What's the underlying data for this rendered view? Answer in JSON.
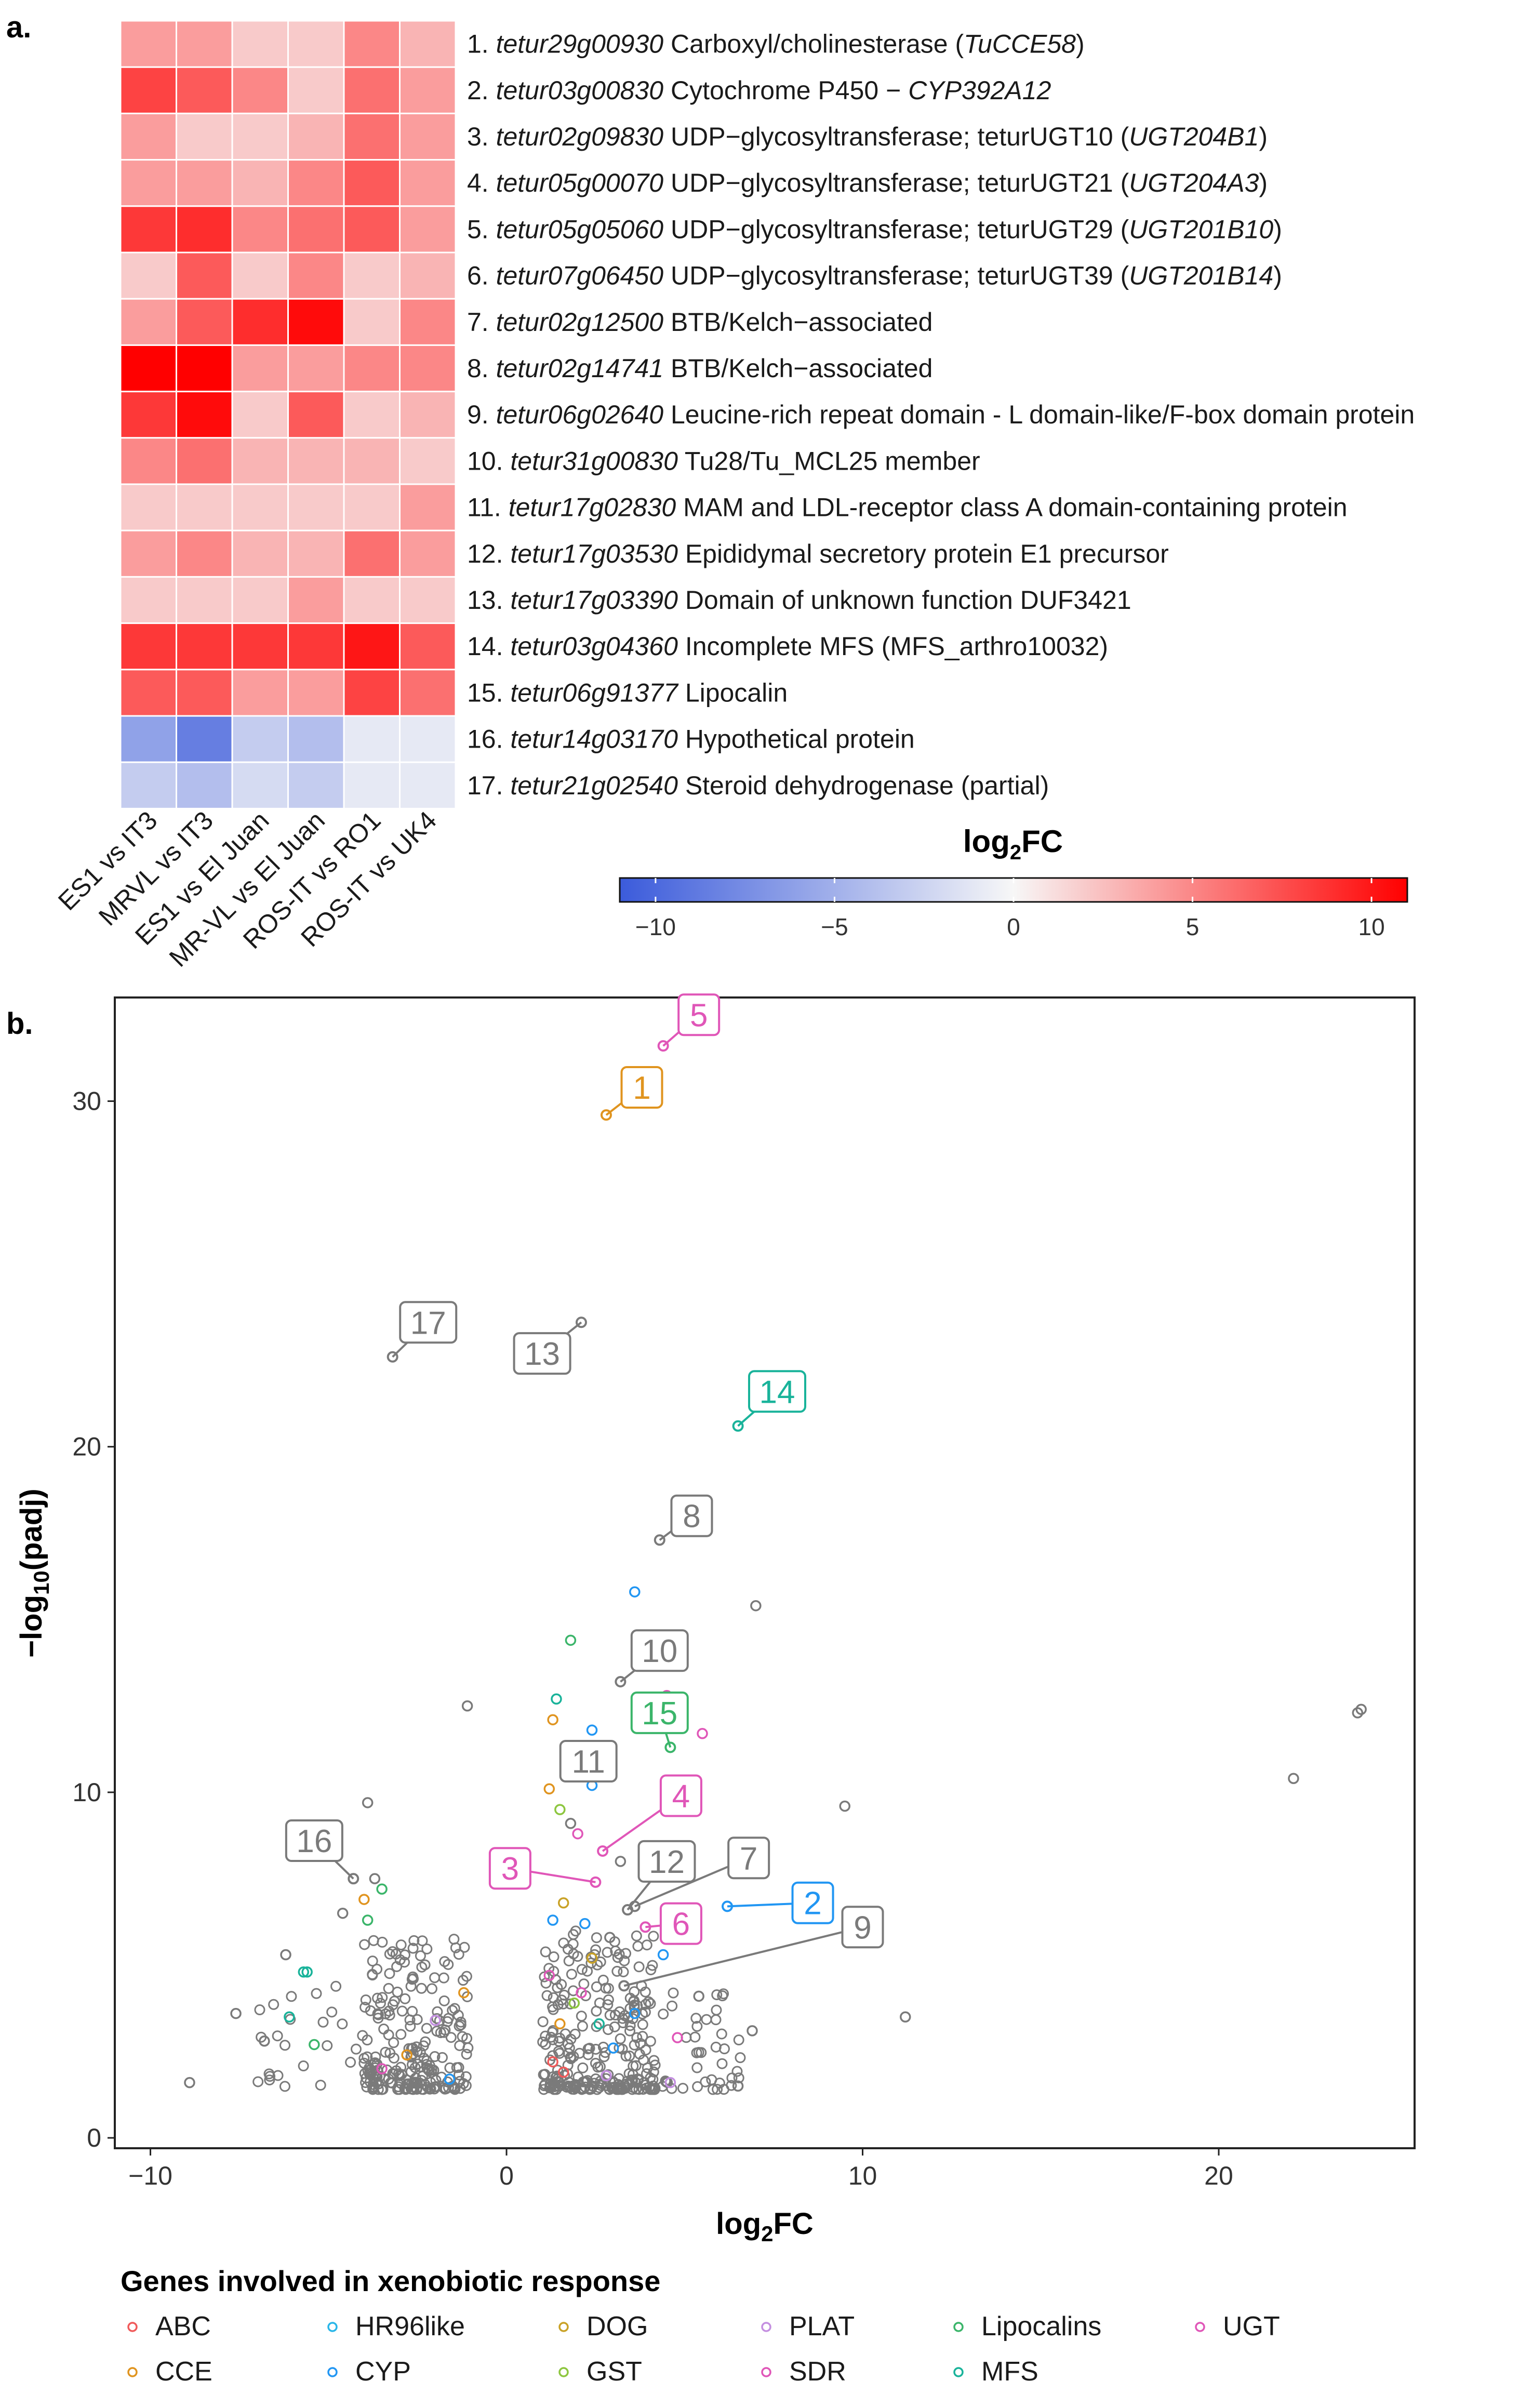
{
  "panel_a_label": "a.",
  "panel_b_label": "b.",
  "colors": {
    "low": "#3b5bdb",
    "mid": "#f7f7f7",
    "high": "#ff0000",
    "background_points": "#7a7a7a"
  },
  "chart_data": [
    {
      "type": "heatmap",
      "columns": [
        "ES1 vs IT3",
        "MRVL vs IT3",
        "ES1 vs El Juan",
        "MR-VL vs El Juan",
        "ROS-IT vs RO1",
        "ROS-IT vs UK4"
      ],
      "rows": [
        {
          "num": "1.",
          "gene": "tetur29g00930",
          "desc": " Carboxyl/cholinesterase (",
          "italic2": "TuCCE58",
          "desc2": ")"
        },
        {
          "num": "2.",
          "gene": "tetur03g00830",
          "desc": " Cytochrome P450 − ",
          "italic2": "CYP392A12",
          "desc2": ""
        },
        {
          "num": "3.",
          "gene": "tetur02g09830",
          "desc": " UDP−glycosyltransferase; teturUGT10 (",
          "italic2": "UGT204B1",
          "desc2": ")"
        },
        {
          "num": "4.",
          "gene": "tetur05g00070",
          "desc": " UDP−glycosyltransferase; teturUGT21 (",
          "italic2": "UGT204A3",
          "desc2": ")"
        },
        {
          "num": "5.",
          "gene": "tetur05g05060",
          "desc": " UDP−glycosyltransferase; teturUGT29 (",
          "italic2": "UGT201B10",
          "desc2": ")"
        },
        {
          "num": "6.",
          "gene": "tetur07g06450",
          "desc": " UDP−glycosyltransferase; teturUGT39 (",
          "italic2": "UGT201B14",
          "desc2": ")"
        },
        {
          "num": "7.",
          "gene": "tetur02g12500",
          "desc": " BTB/Kelch−associated",
          "italic2": "",
          "desc2": ""
        },
        {
          "num": "8.",
          "gene": "tetur02g14741",
          "desc": " BTB/Kelch−associated",
          "italic2": "",
          "desc2": ""
        },
        {
          "num": "9.",
          "gene": "tetur06g02640",
          "desc": " Leucine-rich repeat domain - L domain-like/F-box domain protein",
          "italic2": "",
          "desc2": ""
        },
        {
          "num": "10.",
          "gene": "tetur31g00830",
          "desc": " Tu28/Tu_MCL25 member",
          "italic2": "",
          "desc2": ""
        },
        {
          "num": "11.",
          "gene": "tetur17g02830",
          "desc": " MAM and LDL-receptor class A domain-containing protein",
          "italic2": "",
          "desc2": ""
        },
        {
          "num": "12.",
          "gene": "tetur17g03530",
          "desc": " Epididymal secretory protein E1 precursor",
          "italic2": "",
          "desc2": ""
        },
        {
          "num": "13.",
          "gene": "tetur17g03390",
          "desc": " Domain of unknown function DUF3421",
          "italic2": "",
          "desc2": ""
        },
        {
          "num": "14.",
          "gene": "tetur03g04360",
          "desc": " Incomplete MFS (MFS_arthro10032)",
          "italic2": "",
          "desc2": ""
        },
        {
          "num": "15.",
          "gene": "tetur06g91377",
          "desc": " Lipocalin",
          "italic2": "",
          "desc2": ""
        },
        {
          "num": "16.",
          "gene": "tetur14g03170",
          "desc": " Hypothetical protein",
          "italic2": "",
          "desc2": ""
        },
        {
          "num": "17.",
          "gene": "tetur21g02540",
          "desc": " Steroid dehydrogenase (partial)",
          "italic2": "",
          "desc2": ""
        }
      ],
      "values": [
        [
          4,
          4,
          2,
          2,
          5,
          3
        ],
        [
          8,
          7,
          5,
          2,
          6,
          4
        ],
        [
          4,
          2,
          2,
          3,
          6,
          4
        ],
        [
          4,
          4,
          3,
          5,
          7,
          4
        ],
        [
          8.5,
          9,
          5,
          6,
          7,
          4
        ],
        [
          2,
          7,
          2,
          5,
          2,
          3
        ],
        [
          4,
          7,
          9,
          10.5,
          2,
          5
        ],
        [
          11,
          11,
          4,
          4,
          5,
          5
        ],
        [
          8.5,
          10.5,
          2,
          7,
          2,
          3
        ],
        [
          5,
          6,
          3,
          3,
          3,
          2
        ],
        [
          2,
          2,
          2,
          2,
          2,
          4
        ],
        [
          4,
          5,
          3,
          3,
          6,
          4
        ],
        [
          2,
          2,
          2,
          4,
          2,
          2
        ],
        [
          8.5,
          8.5,
          8.5,
          8.5,
          10,
          7
        ],
        [
          7,
          7,
          4,
          4,
          8,
          6
        ],
        [
          -6,
          -8.5,
          -3,
          -4,
          -1,
          -1
        ],
        [
          -3,
          -4,
          -2,
          -3,
          -1,
          -1
        ]
      ],
      "colorbar": {
        "title": "log",
        "title_sub": "2",
        "title_end": "FC",
        "range": [
          -11,
          11
        ],
        "ticks": [
          -10,
          -5,
          0,
          5,
          10
        ],
        "tick_labels": [
          "−10",
          "−5",
          "0",
          "5",
          "10"
        ]
      }
    },
    {
      "type": "scatter",
      "xlabel": "log",
      "xlabel_sub": "2",
      "xlabel_end": "FC",
      "ylabel": "−log",
      "ylabel_sub": "10",
      "ylabel_end": "(padj)",
      "xlim": [
        -11,
        25.5
      ],
      "ylim": [
        -0.3,
        33
      ],
      "xticks": [
        -10,
        0,
        10,
        20
      ],
      "xtick_labels": [
        "−10",
        "0",
        "10",
        "20"
      ],
      "yticks": [
        0,
        10,
        20,
        30
      ],
      "ytick_labels": [
        "0",
        "10",
        "20",
        "30"
      ],
      "labeled_points": [
        {
          "id": "5",
          "x": 4.4,
          "y": 31.6,
          "color": "#e056b8",
          "lx": 5.4,
          "ly": 32.5
        },
        {
          "id": "1",
          "x": 2.8,
          "y": 29.6,
          "color": "#e0941f",
          "lx": 3.8,
          "ly": 30.4
        },
        {
          "id": "17",
          "x": -3.2,
          "y": 22.6,
          "color": "#7a7a7a",
          "lx": -2.2,
          "ly": 23.6
        },
        {
          "id": "13",
          "x": 2.1,
          "y": 23.6,
          "color": "#7a7a7a",
          "lx": 1.0,
          "ly": 22.7
        },
        {
          "id": "14",
          "x": 6.5,
          "y": 20.6,
          "color": "#19b39a",
          "lx": 7.6,
          "ly": 21.6
        },
        {
          "id": "8",
          "x": 4.3,
          "y": 17.3,
          "color": "#7a7a7a",
          "lx": 5.2,
          "ly": 18.0
        },
        {
          "id": "10",
          "x": 3.2,
          "y": 13.2,
          "color": "#7a7a7a",
          "lx": 4.3,
          "ly": 14.1
        },
        {
          "id": "15",
          "x": 4.6,
          "y": 11.3,
          "color": "#3bb56a",
          "lx": 4.3,
          "ly": 12.3
        },
        {
          "id": "11",
          "x": 1.7,
          "y": 10.8,
          "color": "#7a7a7a",
          "lx": 2.3,
          "ly": 10.9
        },
        {
          "id": "4",
          "x": 2.7,
          "y": 8.3,
          "color": "#e056b8",
          "lx": 4.9,
          "ly": 9.9
        },
        {
          "id": "16",
          "x": -4.3,
          "y": 7.5,
          "color": "#7a7a7a",
          "lx": -5.4,
          "ly": 8.6
        },
        {
          "id": "3",
          "x": 2.5,
          "y": 7.4,
          "color": "#e056b8",
          "lx": 0.1,
          "ly": 7.8
        },
        {
          "id": "12",
          "x": 3.4,
          "y": 6.6,
          "color": "#7a7a7a",
          "lx": 4.5,
          "ly": 8.0
        },
        {
          "id": "7",
          "x": 3.6,
          "y": 6.7,
          "color": "#7a7a7a",
          "lx": 6.8,
          "ly": 8.1
        },
        {
          "id": "2",
          "x": 6.2,
          "y": 6.7,
          "color": "#2196f3",
          "lx": 8.6,
          "ly": 6.8
        },
        {
          "id": "6",
          "x": 3.9,
          "y": 6.1,
          "color": "#e056b8",
          "lx": 4.9,
          "ly": 6.2
        },
        {
          "id": "9",
          "x": 3.3,
          "y": 4.4,
          "color": "#7a7a7a",
          "lx": 10.0,
          "ly": 6.1
        }
      ],
      "other_points": [
        {
          "x": 22.1,
          "y": 10.4,
          "color": "#7a7a7a"
        },
        {
          "x": 24.0,
          "y": 12.4,
          "color": "#7a7a7a"
        },
        {
          "x": 23.9,
          "y": 12.3,
          "color": "#7a7a7a"
        },
        {
          "x": -1.1,
          "y": 12.5,
          "color": "#7a7a7a"
        },
        {
          "x": -3.9,
          "y": 9.7,
          "color": "#7a7a7a"
        },
        {
          "x": 3.6,
          "y": 15.8,
          "color": "#2196f3"
        },
        {
          "x": 7.0,
          "y": 15.4,
          "color": "#7a7a7a"
        },
        {
          "x": 1.8,
          "y": 14.4,
          "color": "#3bb56a"
        },
        {
          "x": 9.5,
          "y": 9.6,
          "color": "#7a7a7a"
        },
        {
          "x": 11.2,
          "y": 3.5,
          "color": "#7a7a7a"
        },
        {
          "x": -8.9,
          "y": 1.6,
          "color": "#7a7a7a"
        },
        {
          "x": -7.6,
          "y": 3.6,
          "color": "#7a7a7a"
        },
        {
          "x": -6.2,
          "y": 5.3,
          "color": "#7a7a7a"
        },
        {
          "x": -5.7,
          "y": 4.8,
          "color": "#19b39a"
        },
        {
          "x": -5.6,
          "y": 4.8,
          "color": "#19b39a"
        },
        {
          "x": -6.1,
          "y": 3.5,
          "color": "#19b39a"
        },
        {
          "x": -5.4,
          "y": 2.7,
          "color": "#3bb56a"
        },
        {
          "x": -6.8,
          "y": 2.8,
          "color": "#7a7a7a"
        },
        {
          "x": -3.7,
          "y": 7.5,
          "color": "#7a7a7a"
        },
        {
          "x": -3.5,
          "y": 7.2,
          "color": "#3bb56a"
        },
        {
          "x": -4.0,
          "y": 6.9,
          "color": "#e0941f"
        },
        {
          "x": -4.6,
          "y": 6.5,
          "color": "#7a7a7a"
        },
        {
          "x": -3.9,
          "y": 6.3,
          "color": "#3bb56a"
        },
        {
          "x": 1.3,
          "y": 12.1,
          "color": "#e0941f"
        },
        {
          "x": 1.4,
          "y": 12.7,
          "color": "#19b39a"
        },
        {
          "x": 2.4,
          "y": 11.8,
          "color": "#2196f3"
        },
        {
          "x": 4.5,
          "y": 12.8,
          "color": "#e056b8"
        },
        {
          "x": 5.5,
          "y": 11.7,
          "color": "#e056b8"
        },
        {
          "x": 2.4,
          "y": 10.2,
          "color": "#2196f3"
        },
        {
          "x": 1.2,
          "y": 10.1,
          "color": "#e0941f"
        },
        {
          "x": 1.5,
          "y": 9.5,
          "color": "#8dc63f"
        },
        {
          "x": 1.8,
          "y": 9.1,
          "color": "#7a7a7a"
        },
        {
          "x": 2.0,
          "y": 8.8,
          "color": "#e056b8"
        },
        {
          "x": 3.2,
          "y": 8.0,
          "color": "#7a7a7a"
        },
        {
          "x": 1.6,
          "y": 6.8,
          "color": "#c9a227"
        },
        {
          "x": 2.2,
          "y": 6.2,
          "color": "#2196f3"
        },
        {
          "x": 1.3,
          "y": 6.3,
          "color": "#2196f3"
        },
        {
          "x": 2.9,
          "y": 5.8,
          "color": "#7a7a7a"
        },
        {
          "x": 4.4,
          "y": 5.3,
          "color": "#2196f3"
        },
        {
          "x": 5.4,
          "y": 4.1,
          "color": "#7a7a7a"
        },
        {
          "x": 6.9,
          "y": 3.1,
          "color": "#7a7a7a"
        },
        {
          "x": 4.8,
          "y": 2.9,
          "color": "#e056b8"
        },
        {
          "x": 6.5,
          "y": 1.5,
          "color": "#7a7a7a"
        },
        {
          "x": 4.6,
          "y": 1.6,
          "color": "#c48fe0"
        },
        {
          "x": -1.2,
          "y": 4.2,
          "color": "#e0941f"
        },
        {
          "x": -2.0,
          "y": 3.4,
          "color": "#c48fe0"
        },
        {
          "x": -2.8,
          "y": 2.4,
          "color": "#e0941f"
        },
        {
          "x": -3.5,
          "y": 2.0,
          "color": "#e056b8"
        },
        {
          "x": -1.6,
          "y": 1.7,
          "color": "#2196f3"
        },
        {
          "x": 1.3,
          "y": 2.2,
          "color": "#f05a5a"
        },
        {
          "x": 1.6,
          "y": 1.9,
          "color": "#f05a5a"
        },
        {
          "x": 2.1,
          "y": 4.2,
          "color": "#e056b8"
        },
        {
          "x": 2.6,
          "y": 3.3,
          "color": "#19b39a"
        },
        {
          "x": 1.9,
          "y": 3.9,
          "color": "#8dc63f"
        },
        {
          "x": 3.0,
          "y": 2.6,
          "color": "#2196f3"
        },
        {
          "x": 1.2,
          "y": 4.7,
          "color": "#e056b8"
        },
        {
          "x": 2.4,
          "y": 5.2,
          "color": "#c9a227"
        },
        {
          "x": 1.5,
          "y": 3.3,
          "color": "#e0941f"
        },
        {
          "x": 3.6,
          "y": 3.6,
          "color": "#2196f3"
        },
        {
          "x": 2.8,
          "y": 1.8,
          "color": "#c48fe0"
        }
      ],
      "legend": {
        "title": "Genes involved in xenobiotic response",
        "items": [
          {
            "label": "ABC",
            "color": "#f05a5a"
          },
          {
            "label": "CCE",
            "color": "#e0941f"
          },
          {
            "label": "HR96like",
            "color": "#29b6e8"
          },
          {
            "label": "CYP",
            "color": "#2196f3"
          },
          {
            "label": "DOG",
            "color": "#c9a227"
          },
          {
            "label": "GST",
            "color": "#8dc63f"
          },
          {
            "label": "PLAT",
            "color": "#c48fe0"
          },
          {
            "label": "SDR",
            "color": "#e056b8"
          },
          {
            "label": "Lipocalins",
            "color": "#3bb56a"
          },
          {
            "label": "MFS",
            "color": "#19b39a"
          },
          {
            "label": "UGT",
            "color": "#e056b8"
          }
        ]
      }
    }
  ]
}
